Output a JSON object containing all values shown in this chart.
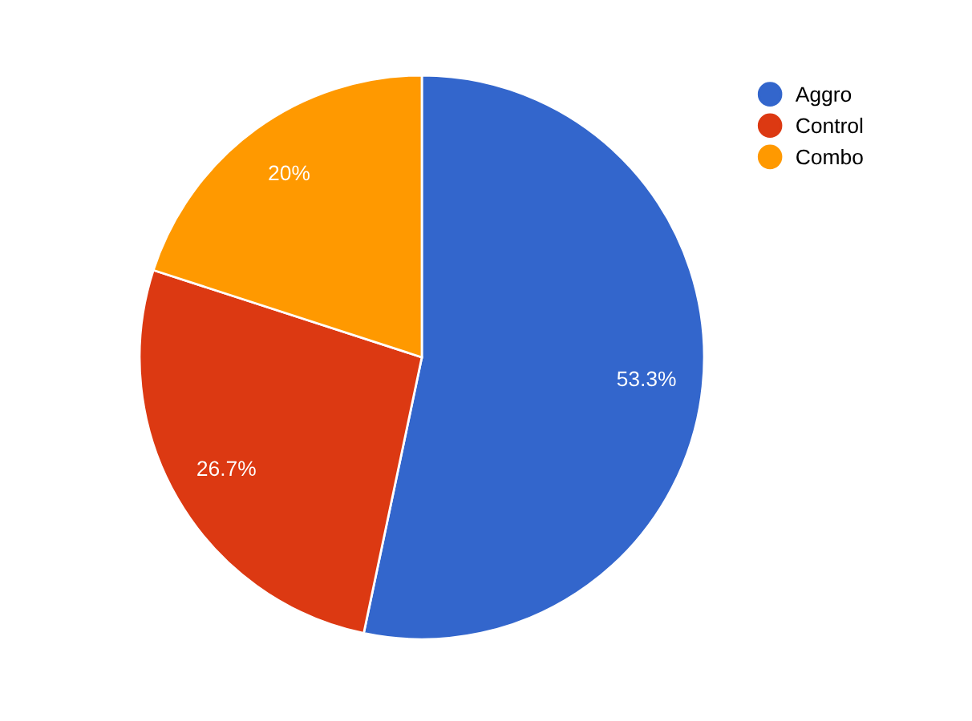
{
  "chart_data": {
    "type": "pie",
    "categories": [
      "Aggro",
      "Control",
      "Combo"
    ],
    "values": [
      53.3,
      26.7,
      20
    ],
    "colors": [
      "#3366cc",
      "#dc3912",
      "#ff9900"
    ],
    "value_labels": [
      "53.3%",
      "26.7%",
      "20%"
    ],
    "legend": "top right"
  }
}
